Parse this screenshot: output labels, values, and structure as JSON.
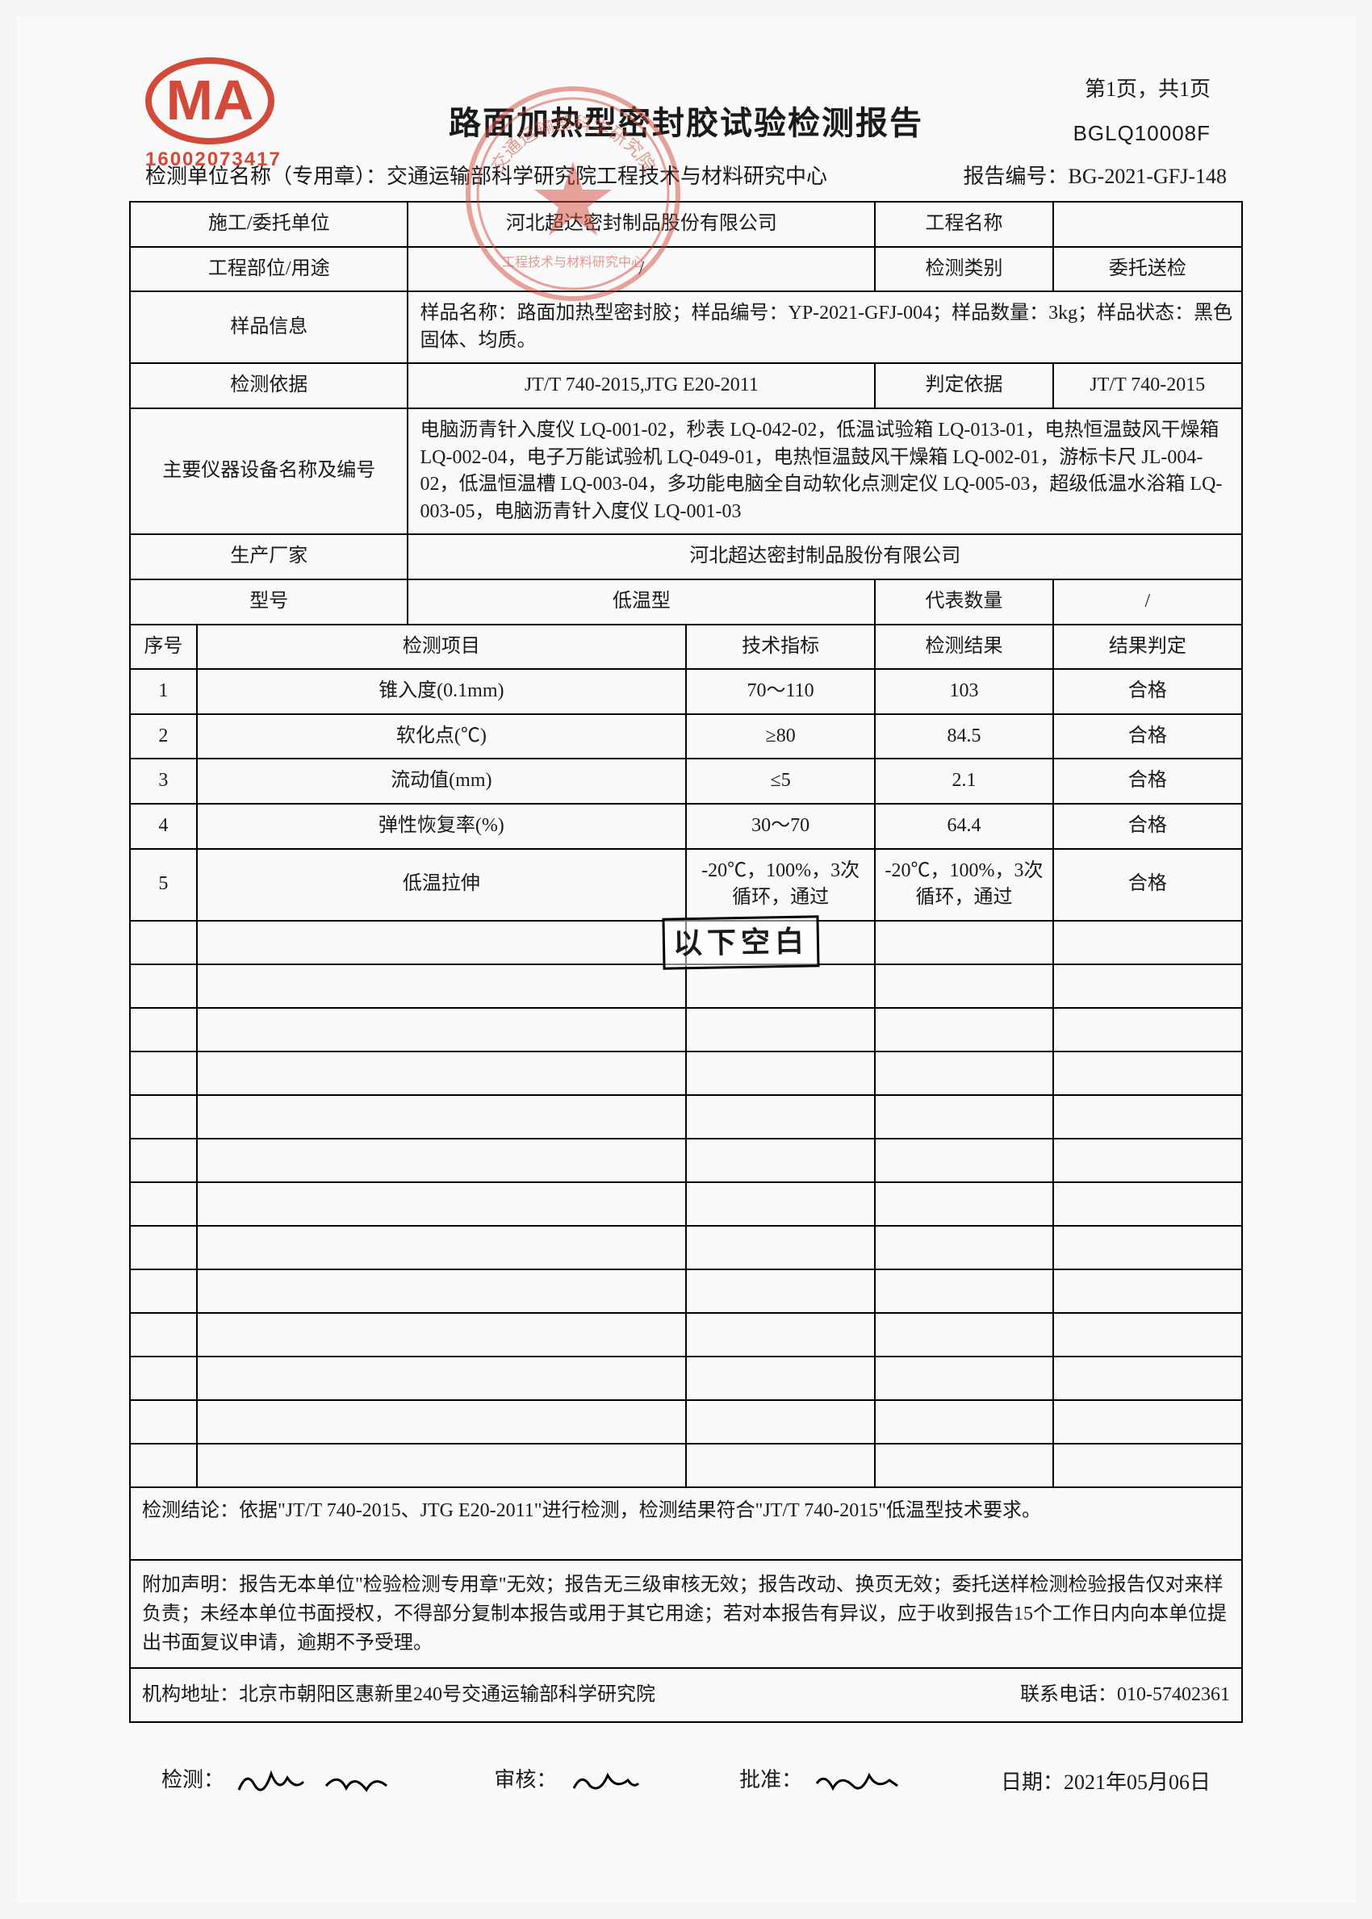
{
  "logo": {
    "text": "MA",
    "number": "16002073417",
    "color": "#d14a3a"
  },
  "stamp": {
    "color": "#d14a3a",
    "opacity": 0.55
  },
  "header": {
    "page_info": "第1页，共1页",
    "form_code": "BGLQ10008F",
    "title": "路面加热型密封胶试验检测报告",
    "unit_label": "检测单位名称（专用章）：",
    "unit_value": "交通运输部科学研究院工程技术与材料研究中心",
    "report_no_label": "报告编号：",
    "report_no": "BG-2021-GFJ-148"
  },
  "info": {
    "r1": {
      "l1": "施工/委托单位",
      "v1": "河北超达密封制品股份有限公司",
      "l2": "工程名称",
      "v2": ""
    },
    "r2": {
      "l1": "工程部位/用途",
      "v1": "/",
      "l2": "检测类别",
      "v2": "委托送检"
    },
    "r3": {
      "l1": "样品信息",
      "v1": "样品名称：路面加热型密封胶；样品编号：YP-2021-GFJ-004；样品数量：3kg；样品状态：黑色固体、均质。"
    },
    "r4": {
      "l1": "检测依据",
      "v1": "JT/T 740-2015,JTG E20-2011",
      "l2": "判定依据",
      "v2": "JT/T 740-2015"
    },
    "r5": {
      "l1": "主要仪器设备名称及编号",
      "v1": "电脑沥青针入度仪 LQ-001-02，秒表 LQ-042-02，低温试验箱 LQ-013-01，电热恒温鼓风干燥箱 LQ-002-04，电子万能试验机 LQ-049-01，电热恒温鼓风干燥箱 LQ-002-01，游标卡尺 JL-004-02，低温恒温槽 LQ-003-04，多功能电脑全自动软化点测定仪 LQ-005-03，超级低温水浴箱 LQ-003-05，电脑沥青针入度仪 LQ-001-03"
    },
    "r6": {
      "l1": "生产厂家",
      "v1": "河北超达密封制品股份有限公司"
    },
    "r7": {
      "l1": "型号",
      "v1": "低温型",
      "l2": "代表数量",
      "v2": "/"
    }
  },
  "table": {
    "headers": {
      "seq": "序号",
      "item": "检测项目",
      "spec": "技术指标",
      "result": "检测结果",
      "judge": "结果判定"
    },
    "rows": [
      {
        "seq": "1",
        "item": "锥入度(0.1mm)",
        "spec": "70～110",
        "result": "103",
        "judge": "合格"
      },
      {
        "seq": "2",
        "item": "软化点(℃)",
        "spec": "≥80",
        "result": "84.5",
        "judge": "合格"
      },
      {
        "seq": "3",
        "item": "流动值(mm)",
        "spec": "≤5",
        "result": "2.1",
        "judge": "合格"
      },
      {
        "seq": "4",
        "item": "弹性恢复率(%)",
        "spec": "30～70",
        "result": "64.4",
        "judge": "合格"
      },
      {
        "seq": "5",
        "item": "低温拉伸",
        "spec": "-20℃，100%，3次循环，通过",
        "result": "-20℃，100%，3次循环，通过",
        "judge": "合格"
      }
    ],
    "blank_stamp": "以下空白",
    "empty_row_count": 13
  },
  "conclusion": {
    "label": "检测结论：",
    "text": "依据\"JT/T 740-2015、JTG E20-2011\"进行检测，检测结果符合\"JT/T 740-2015\"低温型技术要求。"
  },
  "disclaimer": {
    "label": "附加声明：",
    "text": "报告无本单位\"检验检测专用章\"无效；报告无三级审核无效；报告改动、换页无效；委托送样检测检验报告仅对来样负责；未经本单位书面授权，不得部分复制本报告或用于其它用途；若对本报告有异议，应于收到报告15个工作日内向本单位提出书面复议申请，逾期不予受理。"
  },
  "footer": {
    "addr_label": "机构地址：",
    "addr": "北京市朝阳区惠新里240号交通运输部科学研究院",
    "tel_label": "联系电话：",
    "tel": "010-57402361"
  },
  "signatures": {
    "test_label": "检测：",
    "review_label": "审核：",
    "approve_label": "批准：",
    "date_label": "日期：",
    "date": "2021年05月06日"
  },
  "colors": {
    "text": "#1a1a1a",
    "border": "#000000",
    "background": "#fbfafa"
  }
}
